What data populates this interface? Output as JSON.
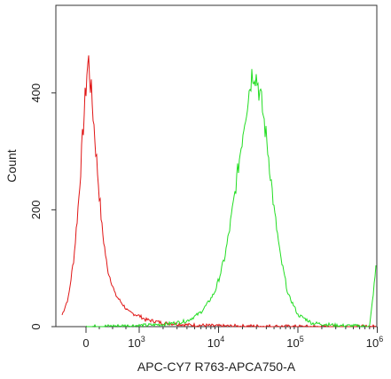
{
  "chart_data": {
    "type": "line",
    "title": "",
    "xlabel": "APC-CY7 R763-APCA750-A",
    "ylabel": "Count",
    "x_scale": "biexponential",
    "x_ticks": [
      {
        "value": 0,
        "base": "0",
        "exp": ""
      },
      {
        "value": 1000,
        "base": "10",
        "exp": "3"
      },
      {
        "value": 10000,
        "base": "10",
        "exp": "4"
      },
      {
        "value": 100000,
        "base": "10",
        "exp": "5"
      },
      {
        "value": 1000000,
        "base": "10",
        "exp": "6"
      }
    ],
    "y_ticks": [
      "0",
      "200",
      "400"
    ],
    "ylim": [
      0,
      550
    ],
    "grid": false,
    "series": [
      {
        "color": "#e01515",
        "points": [
          [
            -300,
            20
          ],
          [
            -220,
            50
          ],
          [
            -150,
            120
          ],
          [
            -90,
            220
          ],
          [
            -40,
            330
          ],
          [
            -10,
            390
          ],
          [
            0,
            410
          ],
          [
            20,
            440
          ],
          [
            50,
            455
          ],
          [
            80,
            420
          ],
          [
            120,
            380
          ],
          [
            170,
            320
          ],
          [
            230,
            250
          ],
          [
            300,
            170
          ],
          [
            400,
            100
          ],
          [
            550,
            55
          ],
          [
            800,
            25
          ],
          [
            1200,
            12
          ],
          [
            2000,
            6
          ],
          [
            4000,
            3
          ],
          [
            10000,
            1
          ],
          [
            100000,
            0
          ],
          [
            1000000,
            0
          ]
        ]
      },
      {
        "color": "#22dd22",
        "points": [
          [
            0,
            0
          ],
          [
            1000,
            2
          ],
          [
            2000,
            4
          ],
          [
            4000,
            10
          ],
          [
            6000,
            25
          ],
          [
            9000,
            60
          ],
          [
            12000,
            120
          ],
          [
            15000,
            200
          ],
          [
            18000,
            280
          ],
          [
            21000,
            350
          ],
          [
            24000,
            400
          ],
          [
            26000,
            430
          ],
          [
            28000,
            440
          ],
          [
            31000,
            420
          ],
          [
            35000,
            380
          ],
          [
            42000,
            300
          ],
          [
            50000,
            200
          ],
          [
            60000,
            120
          ],
          [
            75000,
            55
          ],
          [
            100000,
            20
          ],
          [
            150000,
            6
          ],
          [
            300000,
            2
          ],
          [
            800000,
            0
          ],
          [
            1000000,
            125
          ]
        ]
      }
    ]
  }
}
